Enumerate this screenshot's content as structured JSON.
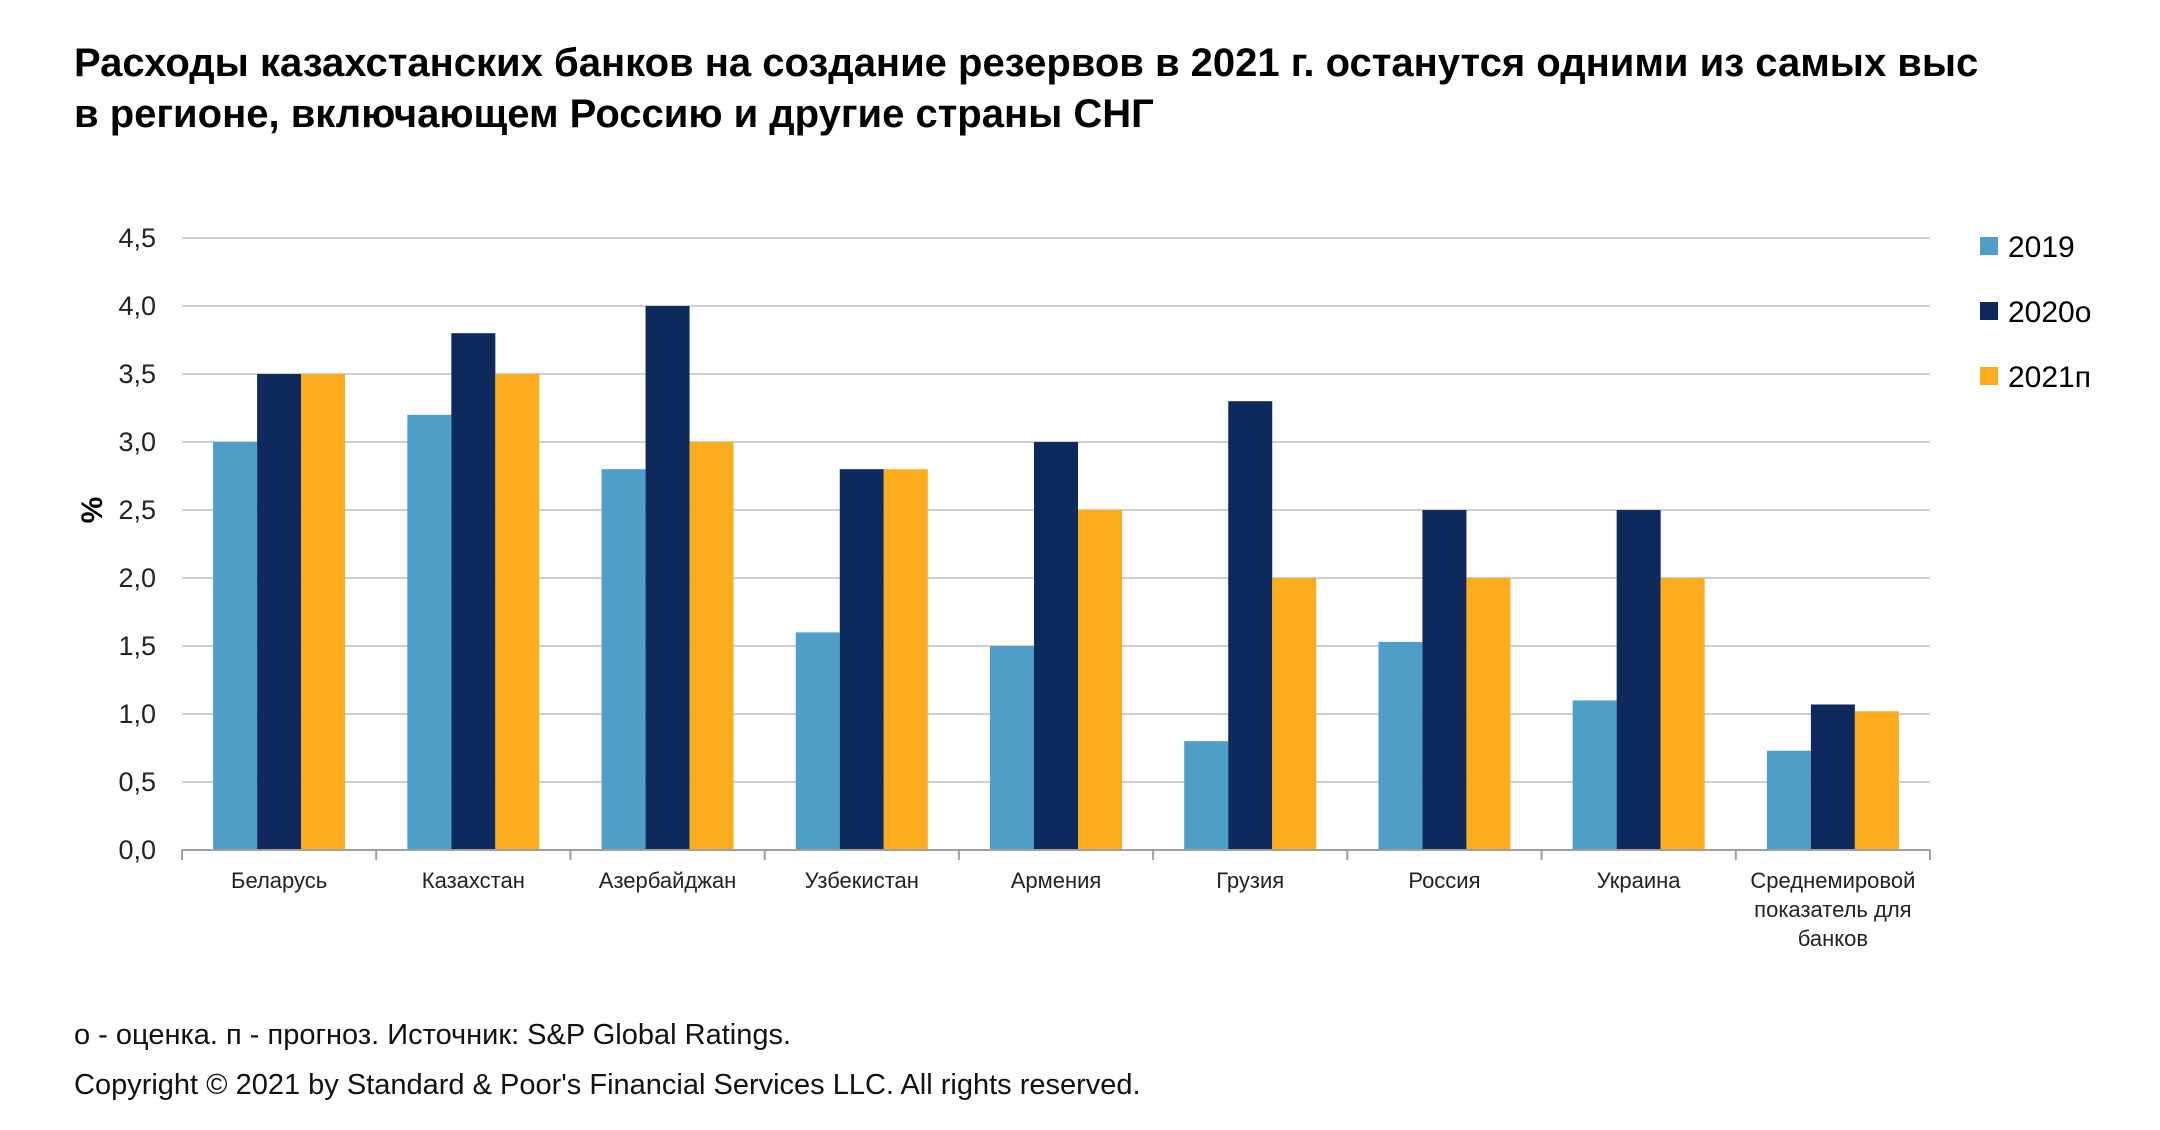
{
  "title": {
    "line1": "Расходы казахстанских банков на создание резервов в 2021 г. останутся одними из самых выс",
    "line2": "в регионе, включающем Россию и другие страны СНГ"
  },
  "footer": {
    "note": "о - оценка. п - прогноз. Источник: S&P Global Ratings.",
    "copyright": "Copyright © 2021 by Standard & Poor's Financial Services LLC. All rights reserved."
  },
  "colors": {
    "2019": "#4f9ec7",
    "2020o": "#0e2a5c",
    "2021p": "#fbad1d",
    "grid": "#d0d0d0",
    "axis": "#a0a0a0"
  },
  "chart_data": {
    "type": "bar",
    "ylabel": "%",
    "xlabel": "",
    "ylim": [
      0,
      4.5
    ],
    "yticks": [
      "0,0",
      "0,5",
      "1,0",
      "1,5",
      "2,0",
      "2,5",
      "3,0",
      "3,5",
      "4,0",
      "4,5"
    ],
    "grid": true,
    "legend_position": "right",
    "categories": [
      [
        "Беларусь"
      ],
      [
        "Казахстан"
      ],
      [
        "Азербайджан"
      ],
      [
        "Узбекистан"
      ],
      [
        "Армения"
      ],
      [
        "Грузия"
      ],
      [
        "Россия"
      ],
      [
        "Украина"
      ],
      [
        "Среднемировой",
        "показатель для",
        "банков"
      ]
    ],
    "series": [
      {
        "name": "2019",
        "color": "#4f9ec7",
        "values": [
          3.0,
          3.2,
          2.8,
          1.6,
          1.5,
          0.8,
          1.53,
          1.1,
          0.73
        ]
      },
      {
        "name": "2020о",
        "color": "#0e2a5c",
        "values": [
          3.5,
          3.8,
          4.0,
          2.8,
          3.0,
          3.3,
          2.5,
          2.5,
          1.07
        ]
      },
      {
        "name": "2021п",
        "color": "#fbad1d",
        "values": [
          3.5,
          3.5,
          3.0,
          2.8,
          2.5,
          2.0,
          2.0,
          2.0,
          1.02
        ]
      }
    ]
  }
}
